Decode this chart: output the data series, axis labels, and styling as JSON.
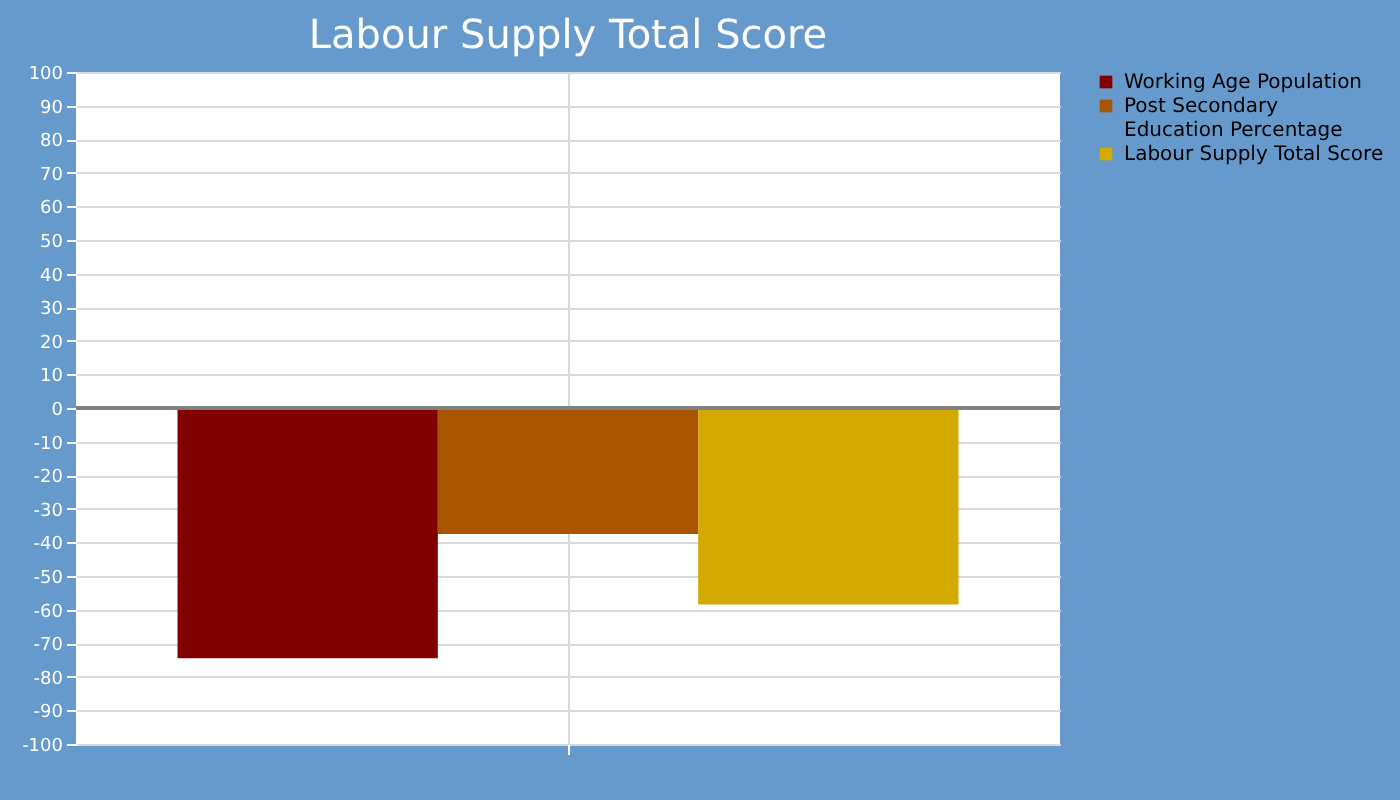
{
  "chart_data": {
    "type": "bar",
    "title": "Labour Supply Total Score",
    "categories": [
      null
    ],
    "series": [
      {
        "name": "Working Age Population",
        "color": "#800000",
        "values": [
          -74.5
        ]
      },
      {
        "name": "Post Secondary Education Percentage",
        "color": "#aa5500",
        "values": [
          -37.5
        ]
      },
      {
        "name": "Labour Supply Total Score",
        "color": "#d4aa00",
        "values": [
          -58.5
        ]
      }
    ],
    "ylim": [
      -100,
      100
    ],
    "yticks": [
      -100,
      -90,
      -80,
      -70,
      -60,
      -50,
      -40,
      -30,
      -20,
      -10,
      0,
      10,
      20,
      30,
      40,
      50,
      60,
      70,
      80,
      90,
      100
    ],
    "ref_lines": [
      {
        "axis": "y",
        "value": 0,
        "color": "#808080"
      }
    ],
    "grid": true,
    "legend": "right",
    "tick_labels": "y"
  }
}
